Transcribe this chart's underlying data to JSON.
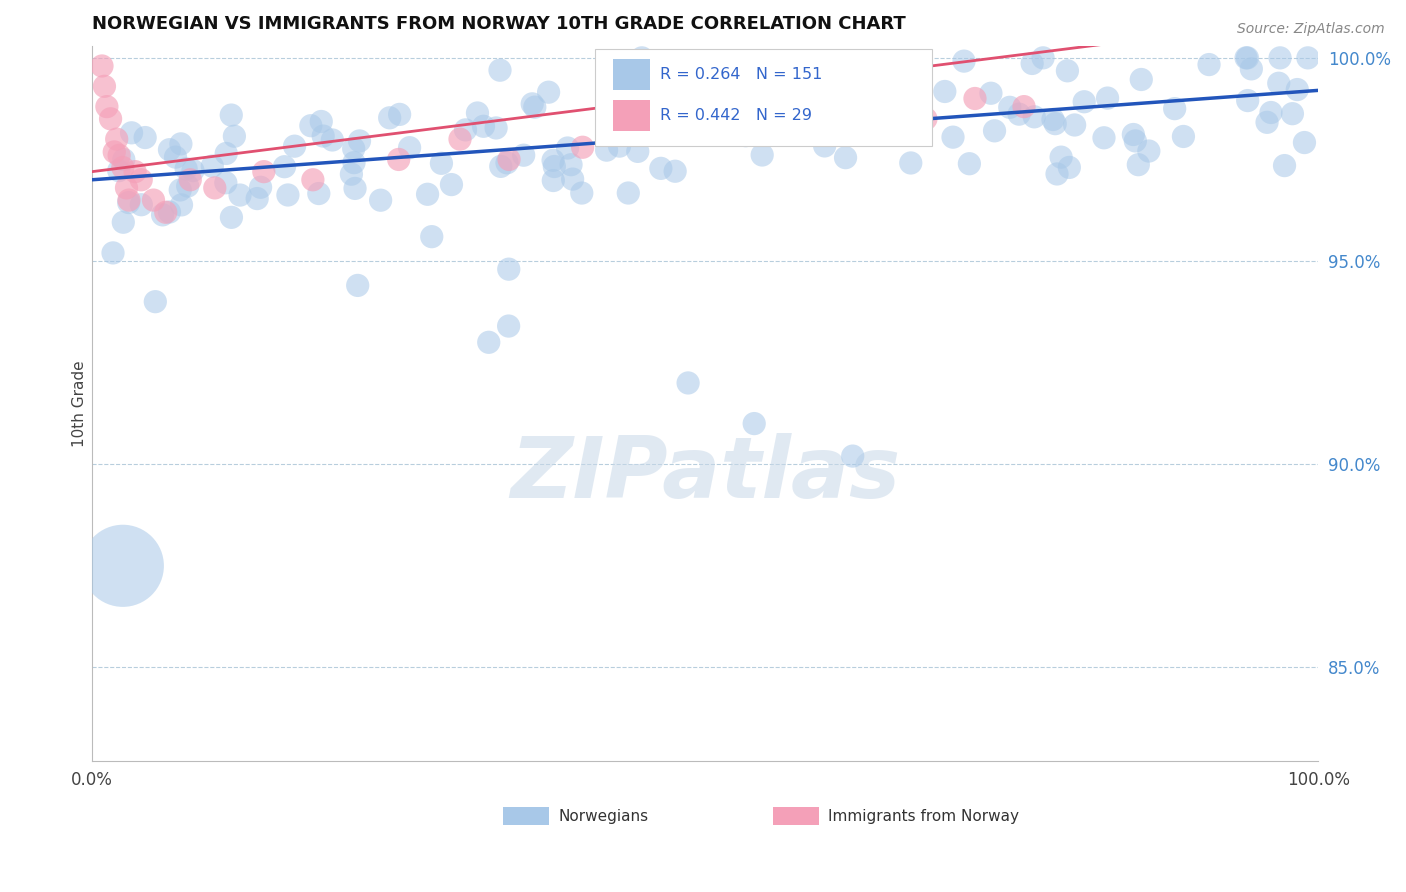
{
  "title": "NORWEGIAN VS IMMIGRANTS FROM NORWAY 10TH GRADE CORRELATION CHART",
  "source": "Source: ZipAtlas.com",
  "ylabel": "10th Grade",
  "xlim": [
    0.0,
    1.0
  ],
  "ylim": [
    0.827,
    1.003
  ],
  "yticks": [
    0.85,
    0.9,
    0.95,
    1.0
  ],
  "ytick_labels": [
    "85.0%",
    "90.0%",
    "95.0%",
    "100.0%"
  ],
  "xticks": [
    0.0,
    0.5,
    1.0
  ],
  "xtick_labels": [
    "0.0%",
    "",
    "100.0%"
  ],
  "blue_R": 0.264,
  "blue_N": 151,
  "pink_R": 0.442,
  "pink_N": 29,
  "blue_color": "#a8c8e8",
  "blue_line_color": "#2255bb",
  "pink_color": "#f4a0b8",
  "pink_line_color": "#e05070",
  "watermark_text": "ZIPatlas",
  "watermark_color": "#c8d8e8",
  "legend_blue_label": "Norwegians",
  "legend_pink_label": "Immigrants from Norway",
  "title_fontsize": 13,
  "source_fontsize": 10,
  "blue_seed": 42,
  "pink_seed": 99
}
